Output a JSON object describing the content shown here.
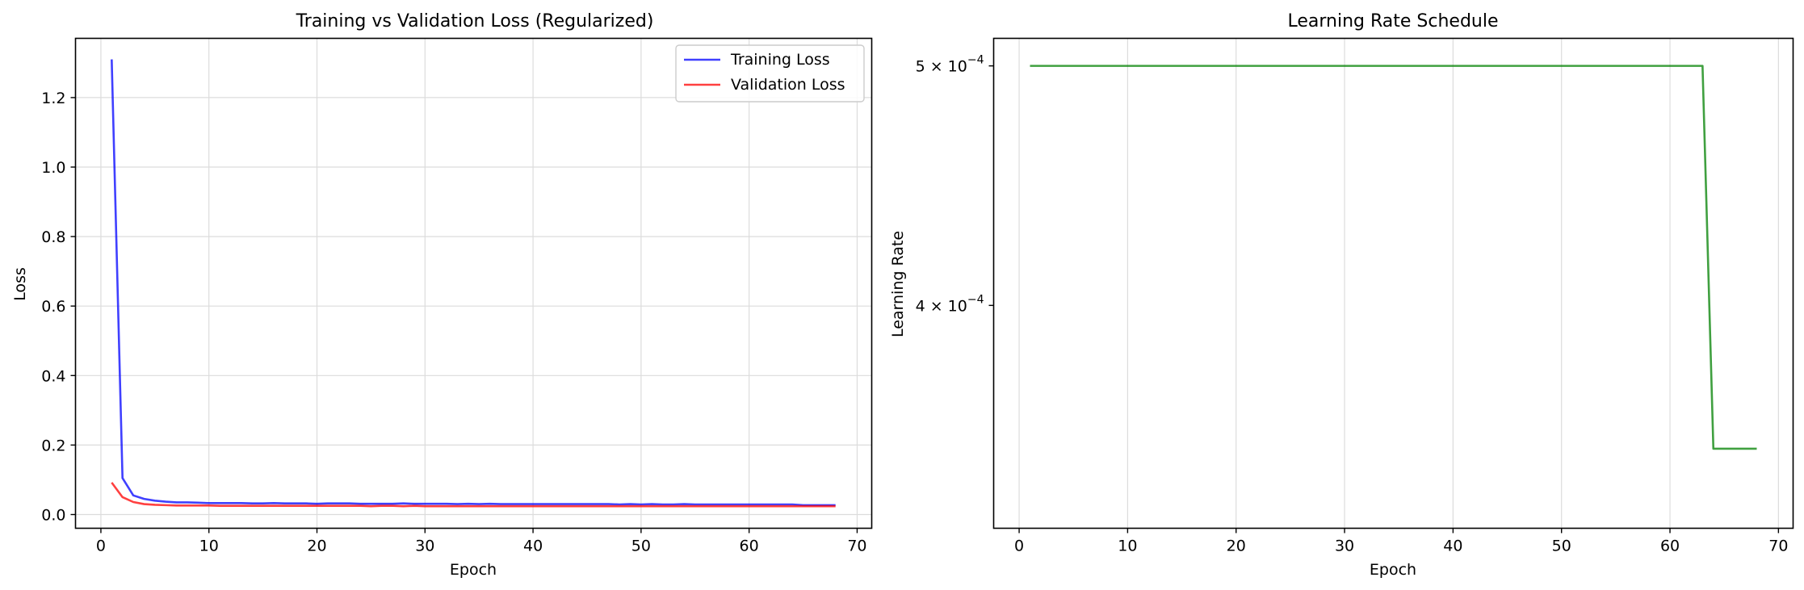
{
  "chart_data": [
    {
      "type": "line",
      "title": "Training vs Validation Loss (Regularized)",
      "xlabel": "Epoch",
      "ylabel": "Loss",
      "xlim": [
        -2.35,
        71.35
      ],
      "ylim": [
        -0.0395,
        1.3705
      ],
      "xticks": [
        0,
        10,
        20,
        30,
        40,
        50,
        60,
        70
      ],
      "yticks": [
        0.0,
        0.2,
        0.4,
        0.6,
        0.8,
        1.0,
        1.2
      ],
      "grid": true,
      "legend_position": "upper right",
      "series": [
        {
          "name": "Training Loss",
          "color": "#0000ff",
          "x": [
            1,
            2,
            3,
            4,
            5,
            6,
            7,
            8,
            9,
            10,
            11,
            12,
            13,
            14,
            15,
            16,
            17,
            18,
            19,
            20,
            21,
            22,
            23,
            24,
            25,
            26,
            27,
            28,
            29,
            30,
            31,
            32,
            33,
            34,
            35,
            36,
            37,
            38,
            39,
            40,
            41,
            42,
            43,
            44,
            45,
            46,
            47,
            48,
            49,
            50,
            51,
            52,
            53,
            54,
            55,
            56,
            57,
            58,
            59,
            60,
            61,
            62,
            63,
            64,
            65,
            66,
            67,
            68
          ],
          "values": [
            1.31,
            0.105,
            0.055,
            0.045,
            0.04,
            0.037,
            0.035,
            0.035,
            0.034,
            0.033,
            0.033,
            0.033,
            0.033,
            0.032,
            0.032,
            0.033,
            0.032,
            0.032,
            0.032,
            0.031,
            0.032,
            0.032,
            0.032,
            0.031,
            0.031,
            0.031,
            0.031,
            0.032,
            0.031,
            0.031,
            0.031,
            0.031,
            0.03,
            0.031,
            0.03,
            0.031,
            0.03,
            0.03,
            0.03,
            0.03,
            0.03,
            0.03,
            0.03,
            0.03,
            0.03,
            0.03,
            0.03,
            0.029,
            0.03,
            0.029,
            0.03,
            0.029,
            0.029,
            0.03,
            0.029,
            0.029,
            0.029,
            0.029,
            0.029,
            0.029,
            0.029,
            0.029,
            0.029,
            0.029,
            0.027,
            0.027,
            0.027,
            0.027
          ]
        },
        {
          "name": "Validation Loss",
          "color": "#ff0000",
          "x": [
            1,
            2,
            3,
            4,
            5,
            6,
            7,
            8,
            9,
            10,
            11,
            12,
            13,
            14,
            15,
            16,
            17,
            18,
            19,
            20,
            21,
            22,
            23,
            24,
            25,
            26,
            27,
            28,
            29,
            30,
            31,
            32,
            33,
            34,
            35,
            36,
            37,
            38,
            39,
            40,
            41,
            42,
            43,
            44,
            45,
            46,
            47,
            48,
            49,
            50,
            51,
            52,
            53,
            54,
            55,
            56,
            57,
            58,
            59,
            60,
            61,
            62,
            63,
            64,
            65,
            66,
            67,
            68
          ],
          "values": [
            0.092,
            0.05,
            0.036,
            0.03,
            0.028,
            0.027,
            0.026,
            0.026,
            0.026,
            0.026,
            0.025,
            0.025,
            0.025,
            0.025,
            0.025,
            0.025,
            0.025,
            0.025,
            0.025,
            0.025,
            0.025,
            0.025,
            0.025,
            0.025,
            0.024,
            0.025,
            0.025,
            0.024,
            0.025,
            0.024,
            0.024,
            0.024,
            0.024,
            0.024,
            0.024,
            0.024,
            0.024,
            0.024,
            0.024,
            0.024,
            0.024,
            0.024,
            0.024,
            0.024,
            0.024,
            0.024,
            0.024,
            0.024,
            0.024,
            0.024,
            0.024,
            0.024,
            0.024,
            0.024,
            0.024,
            0.024,
            0.024,
            0.024,
            0.024,
            0.024,
            0.024,
            0.024,
            0.024,
            0.024,
            0.024,
            0.024,
            0.024,
            0.024
          ]
        }
      ]
    },
    {
      "type": "line",
      "title": "Learning Rate Schedule",
      "xlabel": "Epoch",
      "ylabel": "Learning Rate",
      "yscale": "log",
      "xlim": [
        -2.35,
        71.35
      ],
      "ylim": [
        0.000325,
        0.000513
      ],
      "xticks": [
        0,
        10,
        20,
        30,
        40,
        50,
        60,
        70
      ],
      "yticks": [
        {
          "value": 0.0005,
          "mantissa": "5",
          "exponent": "−4"
        },
        {
          "value": 0.0004,
          "mantissa": "4",
          "exponent": "−4"
        }
      ],
      "grid": true,
      "series": [
        {
          "color": "#008000",
          "x": [
            1,
            63,
            64,
            68
          ],
          "values": [
            0.0005,
            0.0005,
            0.00035,
            0.00035
          ]
        }
      ]
    }
  ]
}
